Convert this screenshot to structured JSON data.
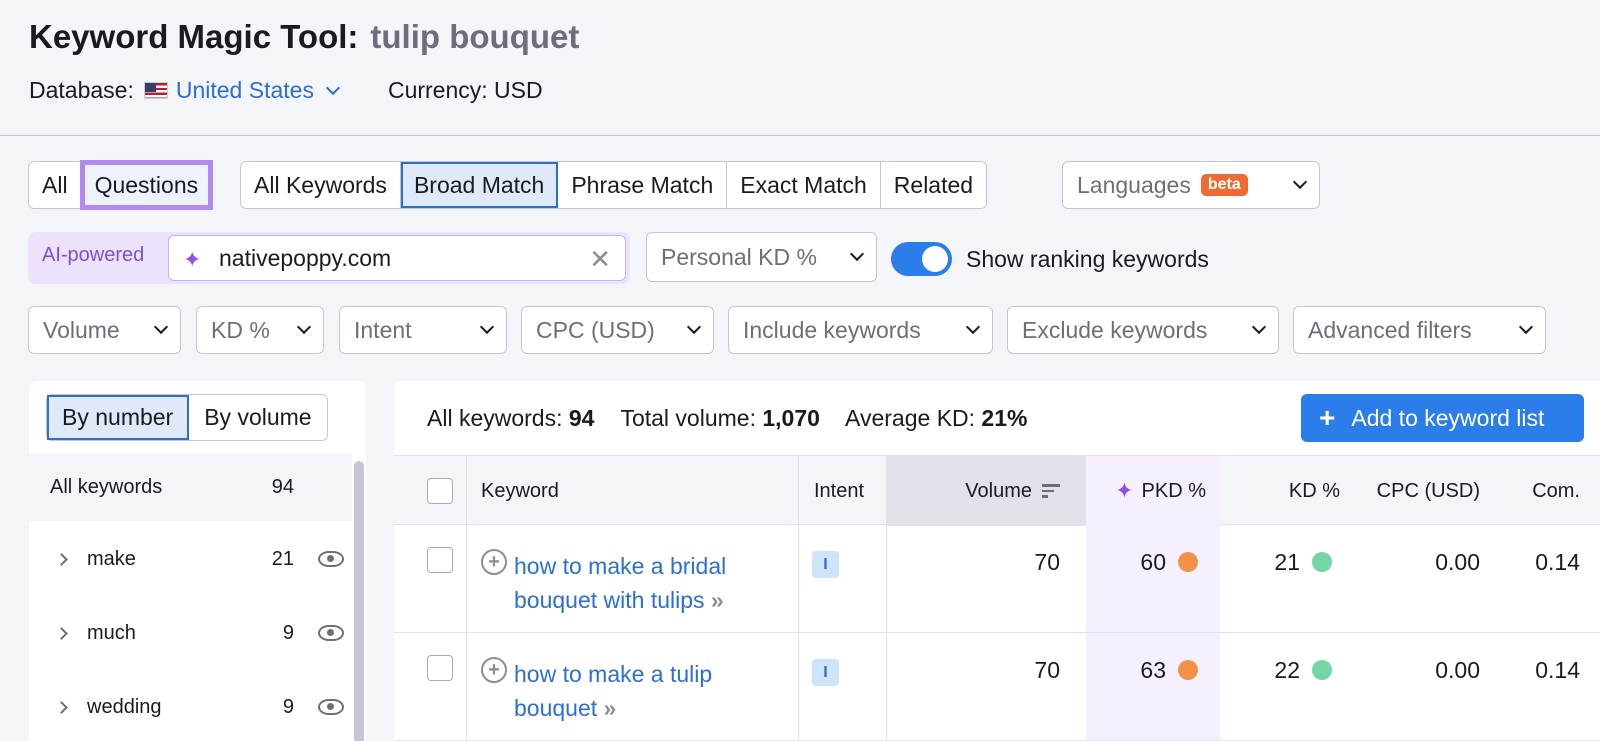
{
  "header": {
    "title": "Keyword Magic Tool:",
    "query": "tulip bouquet",
    "database_label": "Database:",
    "database_value": "United States",
    "currency": "Currency: USD"
  },
  "tabs_question": [
    {
      "label": "All"
    },
    {
      "label": "Questions"
    }
  ],
  "tabs_match": [
    {
      "label": "All Keywords"
    },
    {
      "label": "Broad Match"
    },
    {
      "label": "Phrase Match"
    },
    {
      "label": "Exact Match"
    },
    {
      "label": "Related"
    }
  ],
  "languages": {
    "label": "Languages",
    "badge": "beta"
  },
  "ai": {
    "label": "AI-powered",
    "domain": "nativepoppy.com"
  },
  "personal_kd": "Personal KD %",
  "ranking_toggle_label": "Show ranking keywords",
  "filters": [
    "Volume",
    "KD %",
    "Intent",
    "CPC (USD)",
    "Include keywords",
    "Exclude keywords",
    "Advanced filters"
  ],
  "sidebar": {
    "modes": [
      "By number",
      "By volume"
    ],
    "all_label": "All keywords",
    "all_count": "94",
    "groups": [
      {
        "name": "make",
        "count": "21"
      },
      {
        "name": "much",
        "count": "9"
      },
      {
        "name": "wedding",
        "count": "9"
      }
    ]
  },
  "summary": {
    "all_label": "All keywords:",
    "all_value": "94",
    "volume_label": "Total volume:",
    "volume_value": "1,070",
    "kd_label": "Average KD:",
    "kd_value": "21%"
  },
  "add_button": "Add to keyword list",
  "columns": {
    "keyword": "Keyword",
    "intent": "Intent",
    "volume": "Volume",
    "pkd": "PKD %",
    "kd": "KD %",
    "cpc": "CPC (USD)",
    "com": "Com."
  },
  "rows": [
    {
      "keyword": "how to make a bridal bouquet with tulips",
      "intent": "I",
      "volume": "70",
      "pkd": "60",
      "kd": "21",
      "cpc": "0.00",
      "com": "0.14"
    },
    {
      "keyword": "how to make a tulip bouquet",
      "intent": "I",
      "volume": "70",
      "pkd": "63",
      "kd": "22",
      "cpc": "0.00",
      "com": "0.14"
    }
  ],
  "colors": {
    "accent": "#2b7de9",
    "link": "#2b6fd6",
    "highlight": "#b388f2",
    "pkd_dot": "#f29248",
    "kd_dot": "#74d6a4"
  }
}
